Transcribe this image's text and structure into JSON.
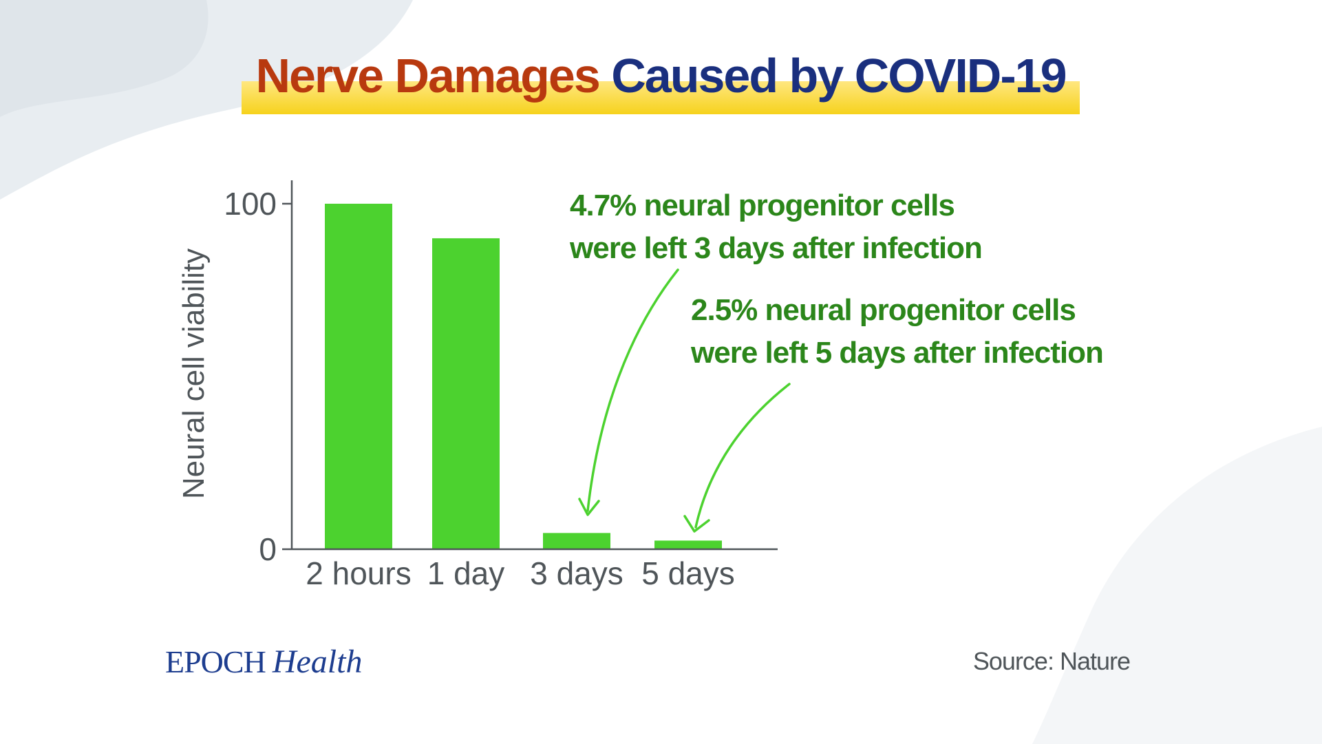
{
  "title": {
    "part1": "Nerve Damages",
    "part2": "Caused by COVID-19"
  },
  "colors": {
    "title_accent": "#b8390f",
    "title_main": "#1a2f7e",
    "highlight": "#f6d21c",
    "bar": "#4cd22f",
    "annotation": "#2b861a",
    "axis": "#4f5559",
    "logo": "#1d3d8f"
  },
  "chart_data": {
    "type": "bar",
    "categories": [
      "2 hours",
      "1 day",
      "3 days",
      "5 days"
    ],
    "values": [
      100,
      90,
      4.7,
      2.5
    ],
    "ylabel": "Neural cell viability",
    "xlabel": "",
    "ylim": [
      0,
      100
    ],
    "yticks": [
      "0",
      "100"
    ],
    "grid": false,
    "annotations": [
      {
        "target": "3 days",
        "lines": [
          "4.7% neural progenitor cells",
          "were left 3 days after infection"
        ]
      },
      {
        "target": "5 days",
        "lines": [
          "2.5% neural progenitor cells",
          "were left 5 days after infection"
        ]
      }
    ]
  },
  "footer": {
    "logo_word1": "EPOCH",
    "logo_word2": "Health",
    "source": "Source: Nature"
  }
}
